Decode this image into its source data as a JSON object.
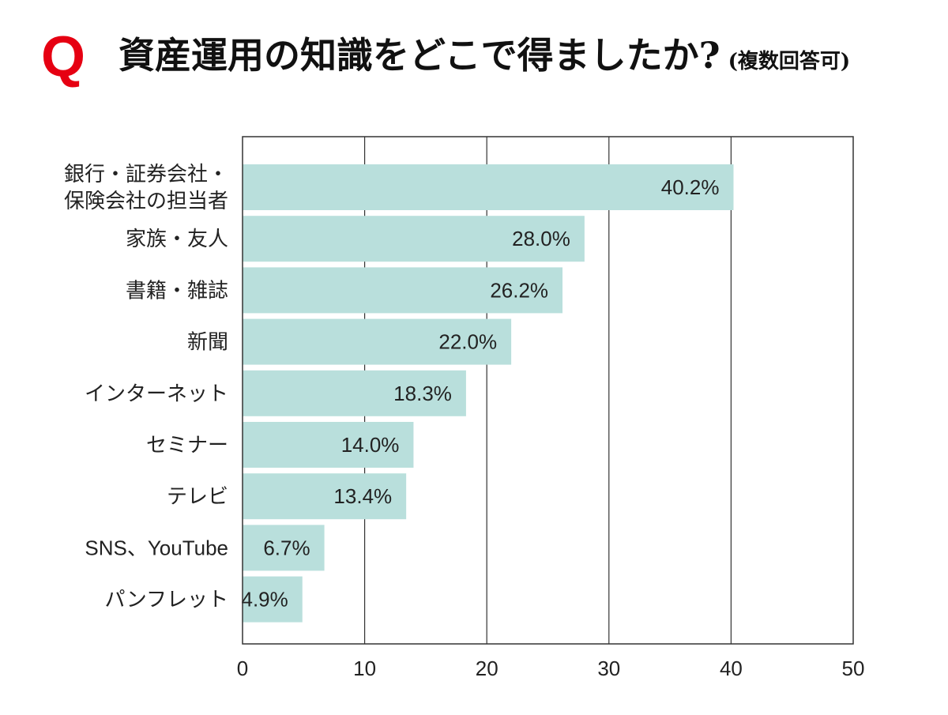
{
  "header": {
    "q_mark": "Q",
    "title": "資産運用の知識をどこで得ましたか?",
    "subtitle": "(複数回答可)"
  },
  "colors": {
    "bar": "#b9dfdc",
    "accent": "#e60012",
    "axis": "#333333"
  },
  "chart_data": {
    "type": "bar",
    "orientation": "horizontal",
    "categories": [
      [
        "銀行・証券会社・",
        "保険会社の担当者"
      ],
      [
        "家族・友人"
      ],
      [
        "書籍・雑誌"
      ],
      [
        "新聞"
      ],
      [
        "インターネット"
      ],
      [
        "セミナー"
      ],
      [
        "テレビ"
      ],
      [
        "SNS、YouTube"
      ],
      [
        "パンフレット"
      ]
    ],
    "values": [
      40.2,
      28.0,
      26.2,
      22.0,
      18.3,
      14.0,
      13.4,
      6.7,
      4.9
    ],
    "value_labels": [
      "40.2%",
      "28.0%",
      "26.2%",
      "22.0%",
      "18.3%",
      "14.0%",
      "13.4%",
      "6.7%",
      "4.9%"
    ],
    "xlim": [
      0,
      50
    ],
    "xticks": [
      0,
      10,
      20,
      30,
      40,
      50
    ],
    "grid": "vertical"
  }
}
